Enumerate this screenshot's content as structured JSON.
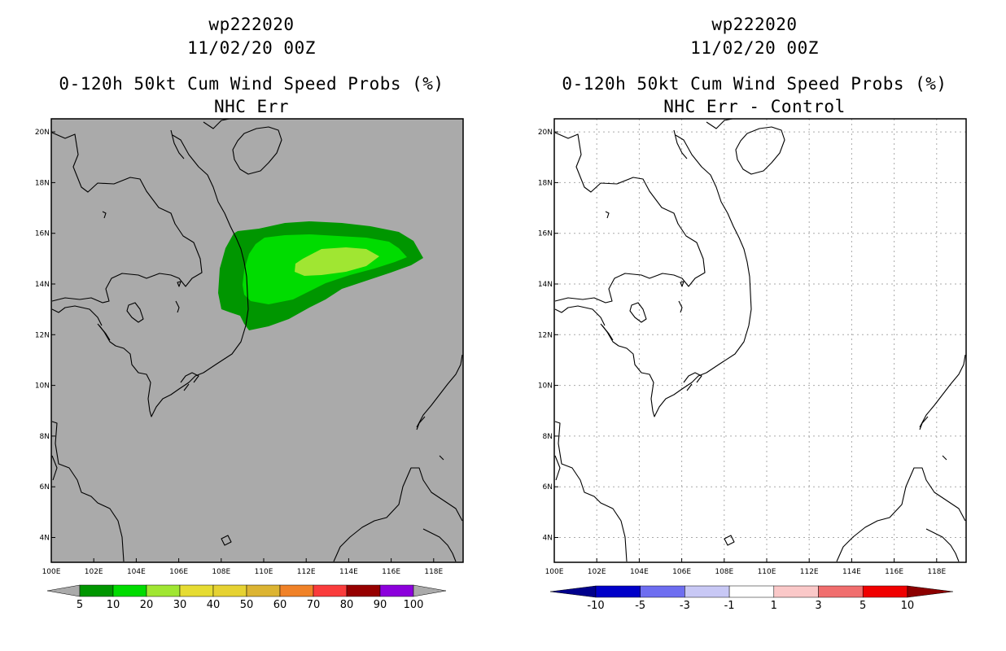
{
  "panels": [
    {
      "storm_id": "wp222020",
      "datetime": "11/02/20 00Z",
      "product": "0-120h 50kt Cum Wind Speed Probs (%)",
      "subtitle": "NHC Err",
      "map_background": "#aaaaaa",
      "legend_values": [
        "5",
        "10",
        "20",
        "30",
        "40",
        "50",
        "60",
        "70",
        "80",
        "90",
        "100"
      ],
      "legend_colors": [
        "#009600",
        "#00dc00",
        "#a0e632",
        "#e6dc32",
        "#e6d232",
        "#dcb432",
        "#f08228",
        "#fa3c3c",
        "#960000",
        "#8c00dc"
      ],
      "legend_end_color": "#aaaaaa"
    },
    {
      "storm_id": "wp222020",
      "datetime": "11/02/20 00Z",
      "product": "0-120h 50kt Cum Wind Speed Probs (%)",
      "subtitle": "NHC Err - Control",
      "map_background": "#ffffff",
      "legend_values": [
        "-10",
        "-5",
        "-3",
        "-1",
        "1",
        "3",
        "5",
        "10"
      ],
      "legend_colors": [
        "#0000c8",
        "#6e6ef0",
        "#c8c8f5",
        "#ffffff",
        "#fac8c8",
        "#f06e6e",
        "#f00000"
      ],
      "legend_low_color": "#00008c",
      "legend_high_color": "#8c0000"
    }
  ],
  "axes": {
    "lon_labels": [
      "100E",
      "102E",
      "104E",
      "106E",
      "108E",
      "110E",
      "112E",
      "114E",
      "116E",
      "118E"
    ],
    "lat_labels": [
      "4N",
      "6N",
      "8N",
      "10N",
      "12N",
      "14N",
      "16N",
      "18N",
      "20N"
    ]
  },
  "probability_contours": [
    {
      "level": "5-10%",
      "color": "#009600"
    },
    {
      "level": "10-20%",
      "color": "#00dc00"
    },
    {
      "level": "20-30%",
      "color": "#a0e632"
    }
  ]
}
